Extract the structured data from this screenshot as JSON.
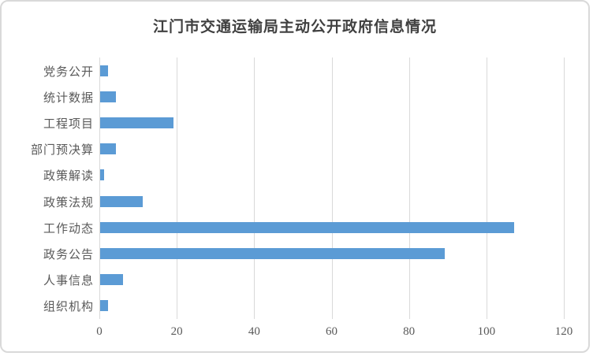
{
  "chart_data": {
    "type": "bar",
    "orientation": "horizontal",
    "title": "江门市交通运输局主动公开政府信息情况",
    "categories_top_to_bottom": [
      "党务公开",
      "统计数据",
      "工程项目",
      "部门预决算",
      "政策解读",
      "政策法规",
      "工作动态",
      "政务公告",
      "人事信息",
      "组织机构"
    ],
    "values": [
      2,
      4,
      19,
      4,
      1,
      11,
      107,
      89,
      6,
      2
    ],
    "xlabel": "",
    "ylabel": "",
    "xlim": [
      0,
      120
    ],
    "xticks": [
      0,
      20,
      40,
      60,
      80,
      100,
      120
    ],
    "grid": "vertical-only",
    "legend": "none",
    "colors": {
      "bar": "#5b9bd5",
      "gridline": "#d9d9d9",
      "axis_line": "#d9d9d9",
      "tick_label": "#595959",
      "category_label": "#595959",
      "title": "#404040",
      "background": "#ffffff",
      "frame_border": "#d9d9d9"
    }
  }
}
